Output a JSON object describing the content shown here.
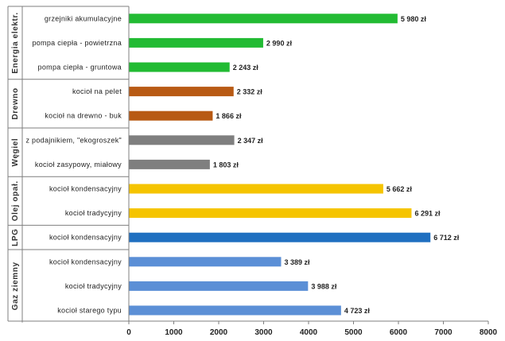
{
  "chart_data": {
    "type": "bar",
    "orientation": "horizontal",
    "xlim": [
      0,
      8000
    ],
    "x_ticks": [
      0,
      1000,
      2000,
      3000,
      4000,
      5000,
      6000,
      7000,
      8000
    ],
    "grid": false,
    "legend": "none",
    "value_suffix": " zł",
    "groups": [
      {
        "name": "Energia elektr.",
        "items": [
          {
            "label": "grzejniki akumulacyjne",
            "value": 5980,
            "display": "5 980 zł",
            "color": "#22bb33"
          },
          {
            "label": "pompa ciepła - powietrzna",
            "value": 2990,
            "display": "2 990 zł",
            "color": "#22bb33"
          },
          {
            "label": "pompa ciepła - gruntowa",
            "value": 2243,
            "display": "2 243 zł",
            "color": "#22bb33"
          }
        ]
      },
      {
        "name": "Drewno",
        "items": [
          {
            "label": "kocioł na pelet",
            "value": 2332,
            "display": "2 332 zł",
            "color": "#b85a14"
          },
          {
            "label": "kocioł na drewno - buk",
            "value": 1866,
            "display": "1 866 zł",
            "color": "#b85a14"
          }
        ]
      },
      {
        "name": "Węgiel",
        "items": [
          {
            "label": "z podajnikiem, \"ekogroszek\"",
            "value": 2347,
            "display": "2 347 zł",
            "color": "#7f7f7f"
          },
          {
            "label": "kocioł zasypowy, miałowy",
            "value": 1803,
            "display": "1 803 zł",
            "color": "#7f7f7f"
          }
        ]
      },
      {
        "name": "Olej opał.",
        "items": [
          {
            "label": "kocioł kondensacyjny",
            "value": 5662,
            "display": "5 662 zł",
            "color": "#f5c400"
          },
          {
            "label": "kocioł tradycyjny",
            "value": 6291,
            "display": "6 291 zł",
            "color": "#f5c400"
          }
        ]
      },
      {
        "name": "LPG",
        "items": [
          {
            "label": "kocioł kondensacyjny",
            "value": 6712,
            "display": "6 712 zł",
            "color": "#1f6fc0"
          }
        ]
      },
      {
        "name": "Gaz ziemny",
        "items": [
          {
            "label": "kocioł kondensacyjny",
            "value": 3389,
            "display": "3 389 zł",
            "color": "#5b8fd6"
          },
          {
            "label": "kocioł tradycyjny",
            "value": 3988,
            "display": "3 988 zł",
            "color": "#5b8fd6"
          },
          {
            "label": "kocioł starego typu",
            "value": 4723,
            "display": "4 723 zł",
            "color": "#5b8fd6"
          }
        ]
      }
    ]
  }
}
